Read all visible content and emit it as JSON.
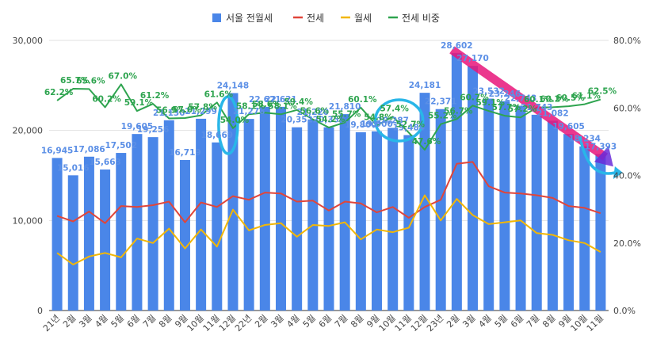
{
  "chart_data": {
    "type": "bar",
    "legend": [
      {
        "key": "total",
        "label": "서울 전월세",
        "color": "#4a86e8",
        "kind": "box"
      },
      {
        "key": "jeonse",
        "label": "전세",
        "color": "#e0453a",
        "kind": "line"
      },
      {
        "key": "wolse",
        "label": "월세",
        "color": "#f2b705",
        "kind": "line"
      },
      {
        "key": "share",
        "label": "전세 비중",
        "color": "#2ea44f",
        "kind": "line"
      }
    ],
    "legend_position": "top",
    "categories": [
      "21년",
      "2월",
      "3월",
      "4월",
      "5월",
      "6월",
      "7월",
      "8월",
      "9월",
      "10월",
      "11월",
      "12월",
      "22년",
      "2월",
      "3월",
      "4월",
      "5월",
      "6월",
      "7월",
      "8월",
      "9월",
      "10월",
      "11월",
      "12월",
      "23년",
      "2월",
      "3월",
      "4월",
      "5월",
      "6월",
      "7월",
      "8월",
      "9월",
      "10월",
      "11월"
    ],
    "series": [
      {
        "name": "서울 전월세",
        "type": "bar",
        "axis": "left",
        "color": "#4a86e8",
        "values": [
          16945,
          15016,
          17086,
          15663,
          17502,
          19605,
          19256,
          21130,
          16719,
          21299,
          18669,
          24148,
          21278,
          22621,
          22621,
          20352,
          21220,
          20352,
          21810,
          19800,
          19900,
          20287,
          19484,
          24181,
          22371,
          28602,
          27170,
          23532,
          23246,
          22743,
          21743,
          21082,
          19605,
          18234,
          17393
        ]
      },
      {
        "name": "전세",
        "type": "line",
        "axis": "left",
        "color": "#e0453a",
        "values": [
          10500,
          9900,
          11000,
          9700,
          11600,
          11500,
          11700,
          12100,
          9800,
          12000,
          11500,
          12700,
          12300,
          13100,
          13000,
          12100,
          12200,
          11100,
          12100,
          11900,
          10900,
          11500,
          10300,
          11500,
          12300,
          16300,
          16500,
          13800,
          13100,
          13000,
          12800,
          12500,
          11600,
          11400,
          10800
        ]
      },
      {
        "name": "월세",
        "type": "line",
        "axis": "left",
        "color": "#f2b705",
        "values": [
          6400,
          5100,
          6000,
          6400,
          5900,
          8000,
          7500,
          9100,
          6900,
          9000,
          7100,
          11200,
          8900,
          9500,
          9700,
          8200,
          9500,
          9400,
          9800,
          7900,
          9000,
          8700,
          9200,
          12800,
          10000,
          12400,
          10600,
          9600,
          9800,
          10000,
          8600,
          8400,
          7800,
          7500,
          6500
        ]
      },
      {
        "name": "전세 비중",
        "type": "line",
        "axis": "right",
        "color": "#2ea44f",
        "values": [
          62.2,
          65.7,
          65.6,
          60.2,
          67.0,
          59.1,
          61.2,
          56.9,
          57.0,
          57.8,
          61.6,
          54.0,
          58.1,
          58.6,
          58.1,
          59.4,
          56.6,
          54.2,
          55.7,
          60.1,
          54.8,
          57.4,
          52.7,
          47.6,
          55.2,
          56.7,
          60.7,
          59.1,
          57.7,
          57.2,
          60.1,
          60.2,
          60.5,
          61.1,
          62.5
        ]
      }
    ],
    "bar_labels": [
      "16,945",
      "15,016",
      "17,086",
      "15,663",
      "17,502",
      "19,605",
      "19,256",
      "21,130",
      "16,719",
      "21,299",
      "18,669",
      "24,148",
      "21,278",
      "22,621",
      "22,621",
      "20,352",
      "21,220",
      "20,352",
      "21,810",
      "19,800",
      "19,900",
      "20,287",
      "19,484",
      "24,181",
      "22,371",
      "28,602",
      "27,170",
      "23,532",
      "23,246",
      "22,743",
      "21,743",
      "21,082",
      "19,605",
      "18,234",
      "17,393"
    ],
    "share_labels": [
      "62.2%",
      "65.7%",
      "65.6%",
      "60.2%",
      "67.0%",
      "59.1%",
      "61.2%",
      "56.9%",
      "57.0%",
      "57.8%",
      "61.6%",
      "54.0%",
      "58.1%",
      "58.6%",
      "58.1%",
      "59.4%",
      "56.6%",
      "54.2%",
      "55.7%",
      "60.1%",
      "54.8%",
      "57.4%",
      "52.7%",
      "47.6%",
      "55.2%",
      "56.7%",
      "60.7%",
      "59.1%",
      "57.7%",
      "57.2%",
      "60.1%",
      "60.2%",
      "60.5%",
      "61.1%",
      "62.5%"
    ],
    "y_left": {
      "min": 0,
      "max": 30000,
      "ticks": [
        0,
        10000,
        20000,
        30000
      ],
      "tick_labels": [
        "0",
        "10,000",
        "20,000",
        "30,000"
      ]
    },
    "y_right": {
      "min": 0,
      "max": 80,
      "ticks": [
        0,
        20,
        40,
        60,
        80
      ],
      "tick_labels": [
        "0.0%",
        "20.0%",
        "40.0%",
        "60.0%",
        "80.0%"
      ]
    },
    "grid": true,
    "annotations": [
      {
        "type": "circle",
        "color": "#29b6e8",
        "from": "11월",
        "to": "12월"
      },
      {
        "type": "circle",
        "color": "#29b6e8",
        "from": "9월",
        "to": "11월"
      },
      {
        "type": "highlight-arrow",
        "color": "#e8157a",
        "from": "23년",
        "to": "11월"
      },
      {
        "type": "curved-arrow",
        "color": "#29b6e8",
        "at": "11월"
      }
    ],
    "colors": {
      "bar": "#4a86e8",
      "bar_label": "#5b8fe6",
      "share_label": "#2ea44f",
      "grid": "#e2e2e2",
      "highlight": "#e8157a",
      "circle": "#29b6e8"
    }
  }
}
